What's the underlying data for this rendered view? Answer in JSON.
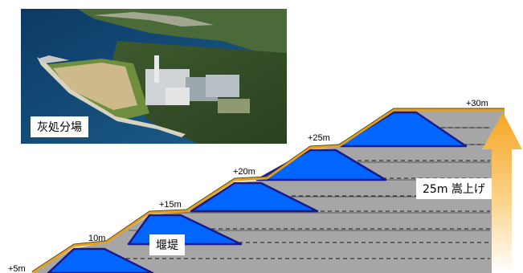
{
  "photo": {
    "caption": "灰処分場"
  },
  "diagram": {
    "levels": [
      "+5m",
      "10m",
      "+15m",
      "+20m",
      "+25m",
      "+30m"
    ],
    "dam_label": "堰堤",
    "raise_label": "25m 嵩上げ",
    "colors": {
      "fill_gray": "#a6a6a6",
      "dike_blue": "#0066ff",
      "dike_outline": "#1a1a8c",
      "slope_orange": "#e6a020",
      "arrow_top": "#f5a623",
      "arrow_bottom": "#ffffff"
    }
  }
}
